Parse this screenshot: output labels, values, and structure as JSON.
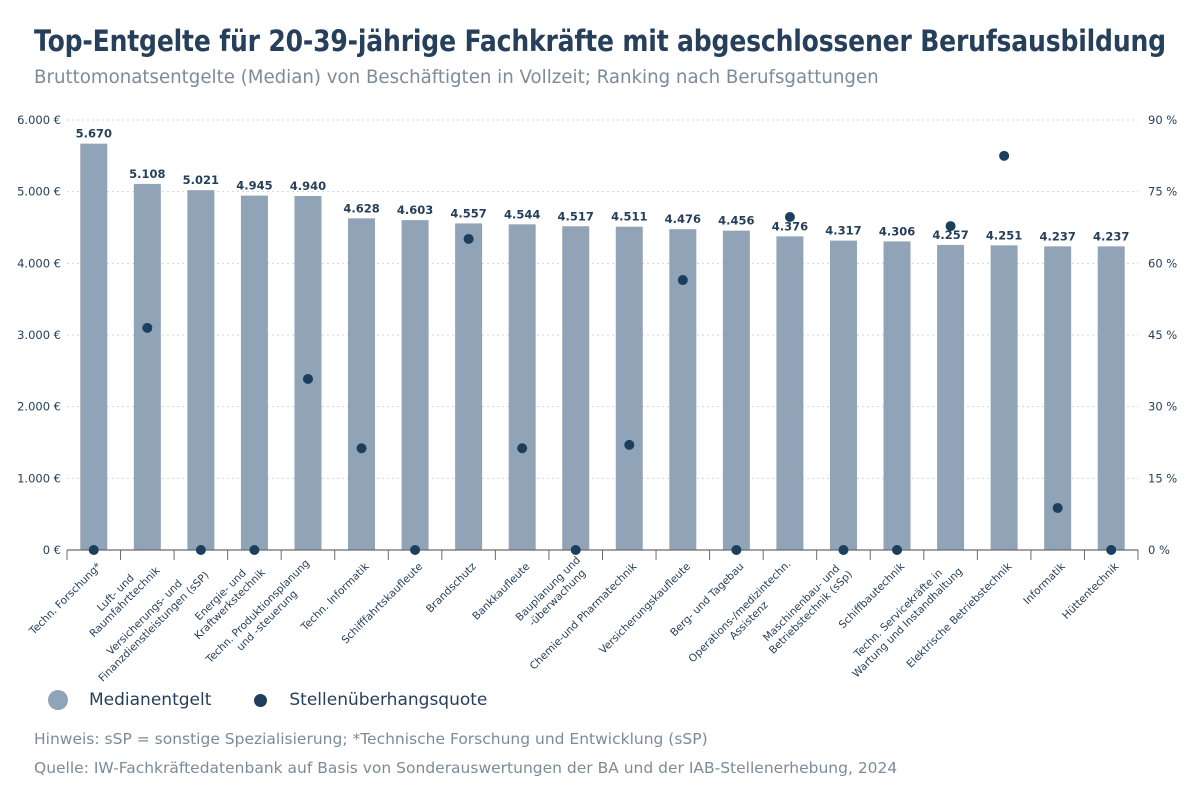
{
  "title": "Top-Entgelte für 20-39-jährige Fachkräfte mit abgeschlossener Berufsausbildung",
  "subtitle": "Bruttomonatsentgelte (Median) von Beschäftigten in Vollzeit; Ranking nach Berufsgattungen",
  "legend": {
    "bar_label": "Medianentgelt",
    "dot_label": "Stellenüberhangsquote"
  },
  "notes": {
    "hint": "Hinweis: sSP = sonstige Spezialisierung; *Technische Forschung und Entwicklung (sSP)",
    "source": "Quelle: IW-Fachkräftedatenbank auf Basis von Sonderauswertungen der BA und der IAB-Stellenerhebung, 2024"
  },
  "colors": {
    "bar": "#91a3b7",
    "dot": "#1d3f5e",
    "text_dark": "#263f5a",
    "text_muted": "#7d8b99",
    "grid": "#cfd5dc"
  },
  "chart_data": {
    "type": "bar",
    "title": "Top-Entgelte für 20-39-jährige Fachkräfte mit abgeschlossener Berufsausbildung",
    "subtitle": "Bruttomonatsentgelte (Median) von Beschäftigten in Vollzeit; Ranking nach Berufsgattungen",
    "xlabel": "",
    "ylabel": "",
    "categories": [
      [
        "Techn. Forschung*"
      ],
      [
        "Luft- und",
        "Raumfahrttechnik"
      ],
      [
        "Versicherungs- und",
        "Finanzdienstleistungen (sSP)"
      ],
      [
        "Energie- und",
        "Kraftwerkstechnik"
      ],
      [
        "Techn. Produktionsplanung",
        "und -steuerung"
      ],
      [
        "Techn. Informatik"
      ],
      [
        "Schifffahrtskaufleute"
      ],
      [
        "Brandschutz"
      ],
      [
        "Bankkaufleute"
      ],
      [
        "Bauplanung und",
        "-überwachung"
      ],
      [
        "Chemie-und Pharmatechnik"
      ],
      [
        "Versicherungskaufleute"
      ],
      [
        "Berg- und Tagebau"
      ],
      [
        "Operations-/medizintechn.",
        "Assistenz"
      ],
      [
        "Maschinenbau- und",
        "Betriebstechnik (sSp)"
      ],
      [
        "Schiffbautechnik"
      ],
      [
        "Techn. Servicekräfte in",
        "Wartung und Instandhaltung"
      ],
      [
        "Elektrische Betriebstechnik"
      ],
      [
        "Informatik"
      ],
      [
        "Hüttentechnik"
      ]
    ],
    "series": [
      {
        "name": "Medianentgelt",
        "type": "bar",
        "axis": "left",
        "values": [
          5670,
          5108,
          5021,
          4945,
          4940,
          4628,
          4603,
          4557,
          4544,
          4517,
          4511,
          4476,
          4456,
          4376,
          4317,
          4306,
          4257,
          4251,
          4237,
          4237
        ],
        "labels": [
          "5.670",
          "5.108",
          "5.021",
          "4.945",
          "4.940",
          "4.628",
          "4.603",
          "4.557",
          "4.544",
          "4.517",
          "4.511",
          "4.476",
          "4.456",
          "4.376",
          "4.317",
          "4.306",
          "4.257",
          "4.251",
          "4.237",
          "4.237"
        ]
      },
      {
        "name": "Stellenüberhangsquote",
        "type": "scatter",
        "axis": "right",
        "values": [
          0,
          46.5,
          0,
          0,
          35.8,
          21.3,
          0,
          65.1,
          21.3,
          0,
          22.0,
          56.5,
          0,
          69.7,
          0,
          0,
          67.8,
          82.5,
          8.8,
          0
        ]
      }
    ],
    "y_left": {
      "range": [
        0,
        6000
      ],
      "ticks": [
        0,
        1000,
        2000,
        3000,
        4000,
        5000,
        6000
      ],
      "tick_labels": [
        "0 €",
        "1.000 €",
        "2.000 €",
        "3.000 €",
        "4.000 €",
        "5.000 €",
        "6.000 €"
      ]
    },
    "y_right": {
      "range": [
        0,
        90
      ],
      "ticks": [
        0,
        15,
        30,
        45,
        60,
        75,
        90
      ],
      "tick_labels": [
        "0 %",
        "15 %",
        "30 %",
        "45 %",
        "60 %",
        "75 %",
        "90 %"
      ]
    },
    "grid": true,
    "legend_position": "bottom-left"
  }
}
